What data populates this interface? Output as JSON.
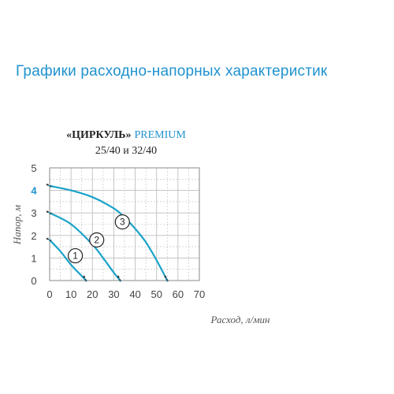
{
  "heading": "Графики расходно-напорных характеристик",
  "product": {
    "brand": "«ЦИРКУЛЬ»",
    "series": "PREMIUM",
    "models": "25/40 и 32/40"
  },
  "colors": {
    "accent": "#1f92cf",
    "curve": "#1aa3c8",
    "grid": "#bfbfbf",
    "text": "#222222"
  },
  "chart_data": {
    "type": "line",
    "xlabel": "Расход, л/мин",
    "ylabel": "Напор, м",
    "xlim": [
      0,
      70
    ],
    "ylim": [
      0,
      5
    ],
    "x_ticks": [
      "0",
      "10",
      "20",
      "30",
      "40",
      "50",
      "60",
      "70"
    ],
    "y_ticks": [
      "0",
      "1",
      "2",
      "3",
      "4",
      "5"
    ],
    "highlighted_y_tick": "4",
    "grid": true,
    "series": [
      {
        "name": "1",
        "x": [
          0,
          5,
          10,
          15,
          17
        ],
        "y": [
          1.8,
          1.3,
          0.7,
          0.2,
          0
        ]
      },
      {
        "name": "2",
        "x": [
          0,
          10,
          20,
          25,
          30,
          33
        ],
        "y": [
          3.0,
          2.5,
          1.6,
          1.0,
          0.35,
          0
        ]
      },
      {
        "name": "3",
        "x": [
          0,
          10,
          20,
          30,
          35,
          40,
          45,
          50,
          55
        ],
        "y": [
          4.2,
          4.0,
          3.7,
          3.2,
          2.8,
          2.3,
          1.7,
          0.9,
          0
        ]
      }
    ],
    "curve_labels": [
      {
        "text": "1",
        "x": 12,
        "y": 1.1
      },
      {
        "text": "2",
        "x": 22,
        "y": 1.8
      },
      {
        "text": "3",
        "x": 34,
        "y": 2.6
      }
    ]
  }
}
